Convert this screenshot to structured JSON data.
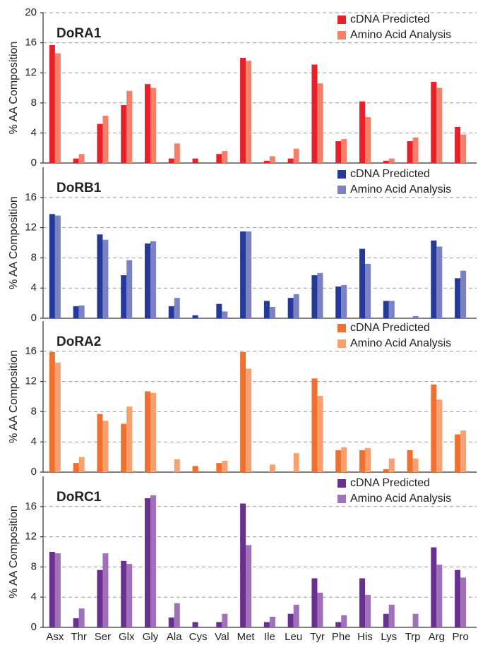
{
  "chart_data": [
    {
      "type": "bar",
      "title": "DoRA1",
      "y_label": "% AA Composition",
      "ylim": [
        0,
        20
      ],
      "yticks": [
        0,
        4,
        8,
        12,
        16,
        20
      ],
      "grid": true,
      "legend": "upper right",
      "series": [
        {
          "name": "cDNA Predicted",
          "color": "#e8202a",
          "values": [
            15.7,
            0.6,
            5.2,
            7.7,
            10.5,
            0.6,
            0.6,
            1.2,
            14,
            0.3,
            0.6,
            13.1,
            2.9,
            8.2,
            0.3,
            2.9,
            10.8,
            4.8
          ]
        },
        {
          "name": "Amino Acid Analysis",
          "color": "#f4806a",
          "values": [
            14.6,
            1.2,
            6.3,
            9.6,
            10,
            2.6,
            0,
            1.6,
            13.6,
            0.9,
            1.9,
            10.6,
            3.2,
            6.1,
            0.6,
            3.4,
            10,
            3.8
          ]
        }
      ]
    },
    {
      "type": "bar",
      "title": "DoRB1",
      "y_label": "% AA Composition",
      "ylim": [
        0,
        20
      ],
      "yticks": [
        0,
        4,
        8,
        12,
        16
      ],
      "grid": true,
      "legend": "upper right",
      "series": [
        {
          "name": "cDNA Predicted",
          "color": "#24399a",
          "values": [
            13.8,
            1.6,
            11.1,
            5.7,
            9.9,
            1.6,
            0.4,
            1.9,
            11.5,
            2.3,
            2.7,
            5.7,
            4.2,
            9.2,
            2.3,
            0,
            10.3,
            5.3
          ]
        },
        {
          "name": "Amino Acid Analysis",
          "color": "#7a82c4",
          "values": [
            13.6,
            1.7,
            10.4,
            7.7,
            10.2,
            2.7,
            0,
            0.9,
            11.5,
            1.5,
            3.2,
            6,
            4.4,
            7.2,
            2.3,
            0.3,
            9.5,
            6.3
          ]
        }
      ]
    },
    {
      "type": "bar",
      "title": "DoRA2",
      "y_label": "% AA Composition",
      "ylim": [
        0,
        20
      ],
      "yticks": [
        0,
        4,
        8,
        12,
        16
      ],
      "grid": true,
      "legend": "upper right",
      "series": [
        {
          "name": "cDNA Predicted",
          "color": "#f07030",
          "values": [
            15.9,
            1.2,
            7.7,
            6.4,
            10.7,
            0,
            0.8,
            1.2,
            15.9,
            0,
            0,
            12.4,
            2.9,
            2.9,
            0.4,
            2.9,
            11.6,
            5
          ]
        },
        {
          "name": "Amino Acid Analysis",
          "color": "#f7a070",
          "values": [
            14.5,
            2,
            6.8,
            8.7,
            10.5,
            1.7,
            0,
            1.5,
            13.7,
            1,
            2.5,
            10.1,
            3.3,
            3.2,
            1.8,
            1.8,
            9.6,
            5.5
          ]
        }
      ]
    },
    {
      "type": "bar",
      "title": "DoRC1",
      "y_label": "% AA Composition",
      "ylim": [
        0,
        20
      ],
      "yticks": [
        0,
        4,
        8,
        12,
        16
      ],
      "grid": true,
      "legend": "upper right",
      "categories": [
        "Asx",
        "Thr",
        "Ser",
        "Glx",
        "Gly",
        "Ala",
        "Cys",
        "Val",
        "Met",
        "Ile",
        "Leu",
        "Tyr",
        "Phe",
        "His",
        "Lys",
        "Trp",
        "Arg",
        "Pro"
      ],
      "series": [
        {
          "name": "cDNA Predicted",
          "color": "#6a3090",
          "values": [
            10,
            1.2,
            7.6,
            8.8,
            17.1,
            1.3,
            0.7,
            0.7,
            16.4,
            0.7,
            1.8,
            6.5,
            0.7,
            6.5,
            1.8,
            0,
            10.6,
            7.6
          ]
        },
        {
          "name": "Amino Acid Analysis",
          "color": "#a070b8",
          "values": [
            9.8,
            2.5,
            9.8,
            8.4,
            17.5,
            3.2,
            0,
            1.8,
            10.9,
            1.4,
            3,
            4.6,
            1.6,
            4.3,
            3,
            1.8,
            8.3,
            6.6
          ]
        }
      ]
    }
  ]
}
